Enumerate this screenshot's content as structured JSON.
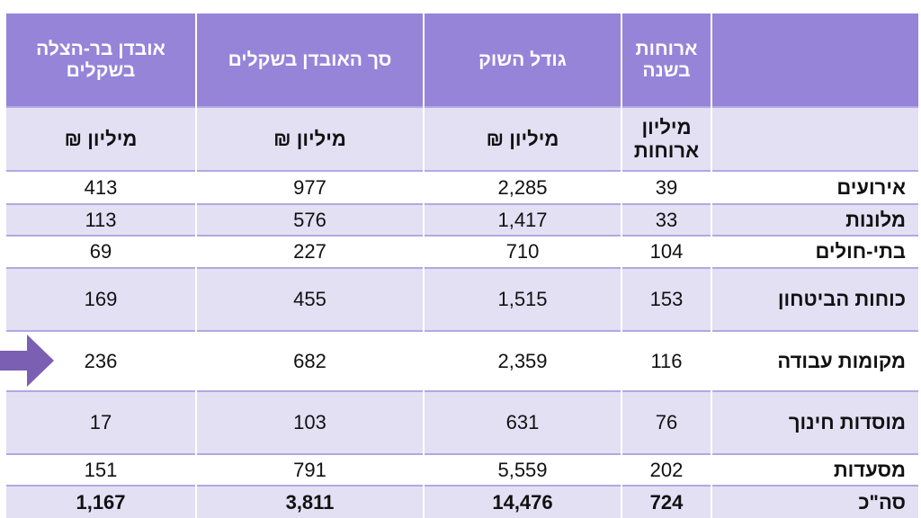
{
  "table": {
    "header": [
      "ארוחות בשנה",
      "גודל השוק",
      "סך האובדן בשקלים",
      "אובדן בר-הצלה בשקלים"
    ],
    "units": [
      "מיליון ארוחות",
      "מיליון ₪",
      "מיליון ₪",
      "מיליון ₪"
    ],
    "rows": [
      [
        "אירועים",
        "39",
        "2,285",
        "977",
        "413"
      ],
      [
        "מלונות",
        "33",
        "1,417",
        "576",
        "113"
      ],
      [
        "בתי-חולים",
        "104",
        "710",
        "227",
        "69"
      ],
      [
        "כוחות הביטחון",
        "153",
        "1,515",
        "455",
        "169"
      ],
      [
        "מקומות עבודה",
        "116",
        "2,359",
        "682",
        "236"
      ],
      [
        "מוסדות חינוך",
        "76",
        "631",
        "103",
        "17"
      ],
      [
        "מסעדות",
        "202",
        "5,559",
        "791",
        "151"
      ],
      [
        "סה\"כ",
        "724",
        "14,476",
        "3,811",
        "1,167"
      ]
    ]
  }
}
